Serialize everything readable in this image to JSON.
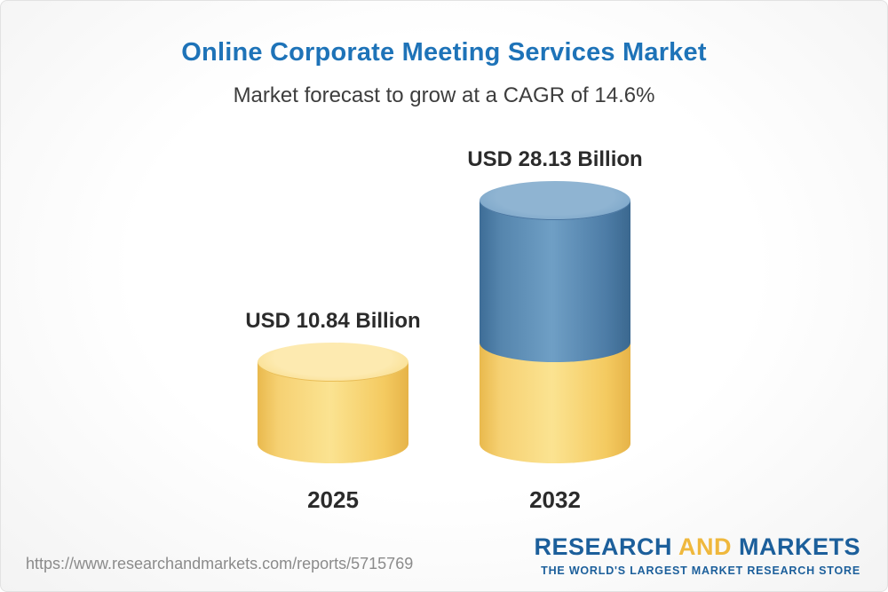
{
  "header": {
    "title": "Online Corporate Meeting Services Market",
    "subtitle": "Market forecast to grow at a CAGR of 14.6%"
  },
  "chart_data": {
    "type": "bar",
    "categories": [
      "2025",
      "2032"
    ],
    "values": [
      10.84,
      28.13
    ],
    "value_labels": [
      "USD 10.84 Billion",
      "USD 28.13 Billion"
    ],
    "unit": "USD Billion",
    "title": "Online Corporate Meeting Services Market",
    "subtitle": "Market forecast to grow at a CAGR of 14.6%",
    "cagr_percent": 14.6,
    "legend_position": "none",
    "grid": false,
    "colors": {
      "bar_2025": "#f6d173",
      "bar_2032_growth": "#5585ad",
      "bar_2032_base": "#f6d173",
      "title": "#1e73b8",
      "text": "#2b2b2b"
    }
  },
  "footer": {
    "url": "https://www.researchandmarkets.com/reports/5715769",
    "logo": {
      "word_research": "RESEARCH ",
      "word_and": "AND",
      "word_markets": " MARKETS",
      "tagline": "THE WORLD'S LARGEST MARKET RESEARCH STORE"
    }
  }
}
